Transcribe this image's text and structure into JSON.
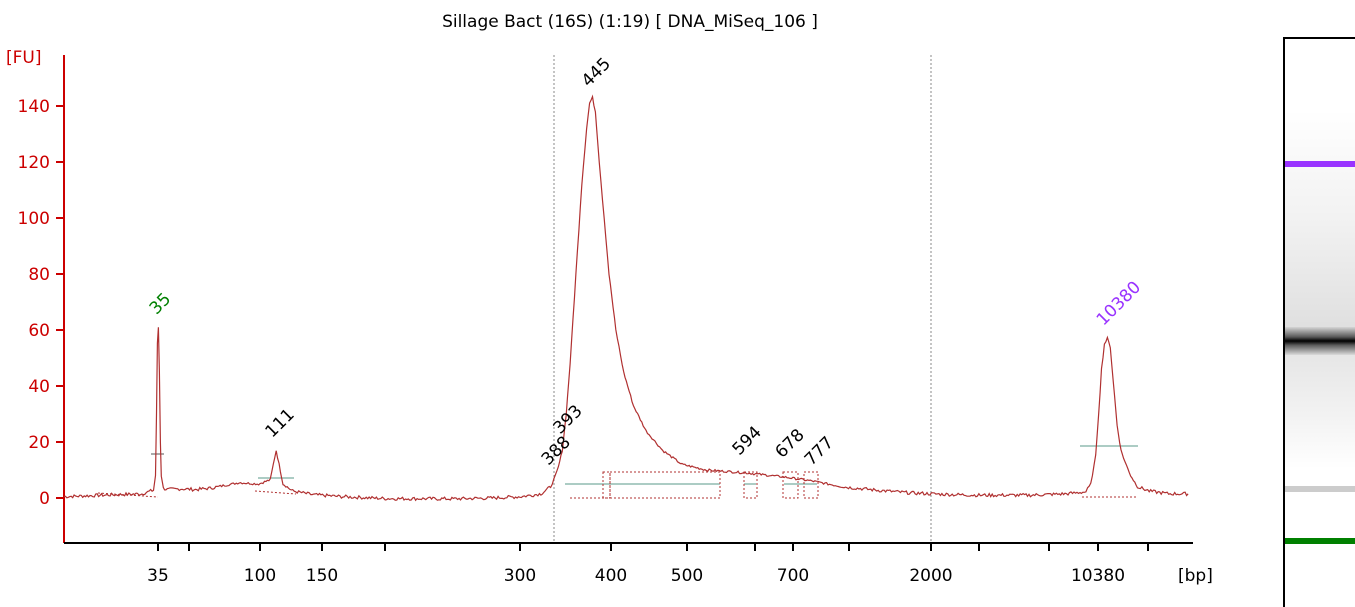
{
  "chart_data": {
    "type": "line",
    "title": "Sillage Bact (16S) (1:19)  [ DNA_MiSeq_106 ]",
    "ylabel": "[FU]",
    "xlabel": "[bp]",
    "ylim": [
      -15,
      150
    ],
    "y_ticks": [
      0,
      20,
      40,
      60,
      80,
      100,
      120,
      140
    ],
    "x_tick_labels": [
      "35",
      "100",
      "150",
      "300",
      "400",
      "500",
      "700",
      "2000",
      "10380"
    ],
    "series": [
      {
        "values": [
          [
            0,
            0.5
          ],
          [
            40,
            1.0
          ],
          [
            80,
            1.5
          ],
          [
            92,
            2.8
          ],
          [
            94,
            8
          ],
          [
            95,
            30
          ],
          [
            96,
            55
          ],
          [
            97,
            61
          ],
          [
            98,
            45
          ],
          [
            99,
            20
          ],
          [
            100,
            8
          ],
          [
            102,
            3.5
          ],
          [
            106,
            3.0
          ],
          [
            120,
            3.3
          ],
          [
            135,
            3.0
          ],
          [
            150,
            3.5
          ],
          [
            165,
            4.5
          ],
          [
            180,
            5.5
          ],
          [
            200,
            5.0
          ],
          [
            212,
            6.5
          ],
          [
            215,
            12
          ],
          [
            218,
            17
          ],
          [
            221,
            12
          ],
          [
            225,
            5
          ],
          [
            235,
            2.5
          ],
          [
            255,
            1.2
          ],
          [
            285,
            0.5
          ],
          [
            330,
            -0.2
          ],
          [
            400,
            -0.3
          ],
          [
            440,
            0.0
          ],
          [
            470,
            0.5
          ],
          [
            490,
            1.5
          ],
          [
            500,
            4.0
          ],
          [
            505,
            8
          ],
          [
            508,
            11
          ],
          [
            512,
            17
          ],
          [
            516,
            30
          ],
          [
            520,
            48
          ],
          [
            526,
            80
          ],
          [
            532,
            112
          ],
          [
            537,
            132
          ],
          [
            540,
            141
          ],
          [
            543,
            143
          ],
          [
            546,
            138
          ],
          [
            550,
            120
          ],
          [
            555,
            100
          ],
          [
            560,
            80
          ],
          [
            567,
            60
          ],
          [
            575,
            45
          ],
          [
            585,
            33
          ],
          [
            598,
            24
          ],
          [
            615,
            17
          ],
          [
            635,
            12
          ],
          [
            660,
            10
          ],
          [
            700,
            9
          ],
          [
            740,
            7.5
          ],
          [
            770,
            6.0
          ],
          [
            800,
            4.0
          ],
          [
            835,
            2.8
          ],
          [
            870,
            1.8
          ],
          [
            905,
            1.3
          ],
          [
            940,
            1.0
          ],
          [
            990,
            1.0
          ],
          [
            1030,
            1.5
          ],
          [
            1050,
            2.2
          ],
          [
            1055,
            5
          ],
          [
            1060,
            15
          ],
          [
            1063,
            30
          ],
          [
            1066,
            46
          ],
          [
            1069,
            55
          ],
          [
            1072,
            57
          ],
          [
            1075,
            54
          ],
          [
            1078,
            42
          ],
          [
            1082,
            26
          ],
          [
            1086,
            17
          ],
          [
            1090,
            13
          ],
          [
            1096,
            8
          ],
          [
            1103,
            4
          ],
          [
            1115,
            2.5
          ],
          [
            1135,
            1.5
          ],
          [
            1155,
            1.5
          ]
        ]
      }
    ],
    "peaks": [
      {
        "label": "35",
        "x": 97,
        "y": 61,
        "color": "#008000"
      },
      {
        "label": "111",
        "x": 218,
        "y": 17,
        "color": "#000000"
      },
      {
        "label": "388",
        "x": 510,
        "y": 10,
        "color": "#000000"
      },
      {
        "label": "393",
        "x": 518,
        "y": 19,
        "color": "#000000"
      },
      {
        "label": "445",
        "x": 543,
        "y": 143,
        "color": "#000000"
      },
      {
        "label": "594",
        "x": 700,
        "y": 10,
        "color": "#000000"
      },
      {
        "label": "678",
        "x": 742,
        "y": 9,
        "color": "#000000"
      },
      {
        "label": "777",
        "x": 768,
        "y": 7,
        "color": "#000000"
      },
      {
        "label": "10380",
        "x": 1072,
        "y": 57,
        "color": "#9933ff"
      }
    ],
    "colors": {
      "trace": "#b03030",
      "axis": "#cc0000",
      "marker_green": "#008000",
      "marker_purple": "#9933ff",
      "baseline": "#5a9a8a"
    },
    "gel_bands": [
      {
        "y": 0.22,
        "strength": 1.0,
        "color": "#9933ff"
      },
      {
        "y": 0.53,
        "strength": 1.0,
        "color": "#000000"
      },
      {
        "y": 0.79,
        "strength": 0.2,
        "color": "#000000"
      },
      {
        "y": 0.88,
        "strength": 1.0,
        "color": "#008000"
      }
    ]
  }
}
